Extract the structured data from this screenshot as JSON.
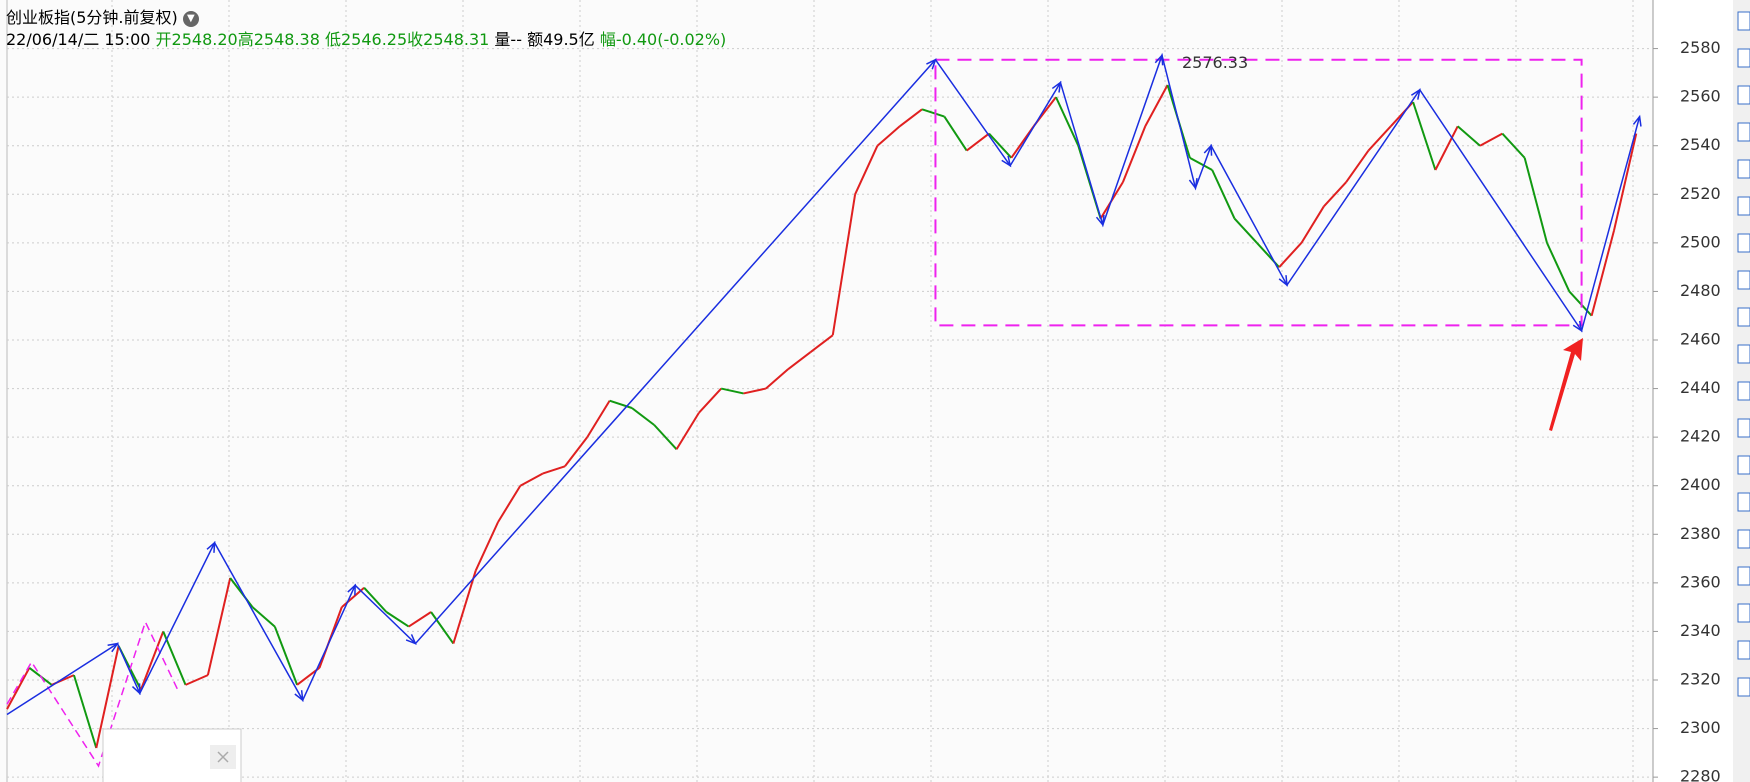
{
  "chart_data": {
    "type": "line",
    "title": "创业板指(5分钟.前复权)",
    "info": {
      "date": "22/06/14/二 15:00",
      "open": "开2548.20",
      "high": "高2548.38",
      "low": "低2546.25",
      "close": "收2548.31",
      "volume": "量--",
      "amount": "额49.5亿",
      "change": "幅-0.40(-0.02%)"
    },
    "annotation": "2576.33",
    "xlim": [
      0,
      295
    ],
    "ylim": [
      2278,
      2600
    ],
    "yticks": [
      2280,
      2300,
      2320,
      2340,
      2360,
      2380,
      2400,
      2420,
      2440,
      2460,
      2480,
      2500,
      2520,
      2540,
      2560,
      2580
    ],
    "grid": true,
    "up_color": "#e02020",
    "down_color": "#119911",
    "price": {
      "x": [
        0,
        4,
        8,
        12,
        16,
        20,
        24,
        28,
        32,
        36,
        40,
        44,
        48,
        52,
        56,
        60,
        64,
        68,
        72,
        76,
        80,
        84,
        88,
        92,
        96,
        100,
        104,
        108,
        112,
        116,
        120,
        124,
        128,
        132,
        136,
        140,
        144,
        148,
        152,
        156,
        160,
        164,
        168,
        172,
        176,
        180,
        184,
        188,
        192,
        196,
        200,
        204,
        208,
        212,
        216,
        220,
        224,
        228,
        232,
        236,
        240,
        244,
        248,
        252,
        256,
        260,
        264,
        268,
        272,
        276,
        280,
        284,
        288,
        292
      ],
      "values": [
        2308,
        2325,
        2318,
        2322,
        2292,
        2334,
        2316,
        2340,
        2318,
        2322,
        2362,
        2350,
        2342,
        2318,
        2325,
        2350,
        2358,
        2348,
        2342,
        2348,
        2335,
        2365,
        2385,
        2400,
        2405,
        2408,
        2420,
        2435,
        2432,
        2425,
        2415,
        2430,
        2440,
        2438,
        2440,
        2448,
        2455,
        2462,
        2520,
        2540,
        2548,
        2555,
        2552,
        2538,
        2545,
        2535,
        2548,
        2560,
        2540,
        2510,
        2525,
        2548,
        2565,
        2535,
        2530,
        2510,
        2500,
        2490,
        2500,
        2515,
        2525,
        2538,
        2548,
        2558,
        2530,
        2548,
        2540,
        2545,
        2535,
        2500,
        2480,
        2470,
        2505,
        2545
      ]
    },
    "zigzag": {
      "color": "#1a2ee0",
      "x": [
        0,
        19.8,
        23.8,
        37.2,
        53,
        62.4,
        73.2,
        166.4,
        179.8,
        188.8,
        196.4,
        207,
        213,
        215.8,
        229.4,
        253.2,
        282.2,
        292.6
      ],
      "values": [
        2305.8,
        2335,
        2314.5,
        2376.5,
        2311.7,
        2359,
        2335,
        2575.4,
        2531.8,
        2566,
        2507.4,
        2577.2,
        2522.6,
        2540,
        2482.6,
        2563,
        2463.8,
        2552
      ]
    },
    "zigzag2": {
      "color": "#ee22ee",
      "x": [
        0,
        4.4,
        16.4,
        24.8,
        30.8
      ],
      "values": [
        2310,
        2327.4,
        2284.6,
        2343.9,
        2315
      ]
    },
    "box": {
      "color": "#ee22ee",
      "x": [
        166.4,
        282.2
      ],
      "values": [
        2575.4,
        2466
      ]
    }
  }
}
